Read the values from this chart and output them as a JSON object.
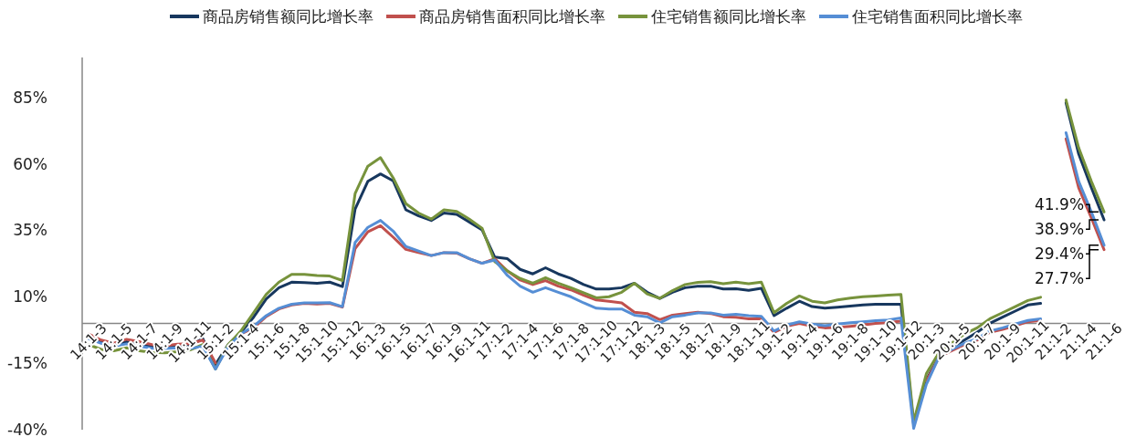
{
  "chart_data": {
    "type": "line",
    "categories": [
      "14:1-3",
      null,
      "14:1-5",
      null,
      "14:1-7",
      null,
      "14:1-9",
      null,
      "14:1-11",
      null,
      "15:1-2",
      null,
      "15:1-4",
      null,
      "15:1-6",
      null,
      "15:1-8",
      null,
      "15:1-10",
      null,
      "15:1-12",
      null,
      "16:1-3",
      null,
      "16:1-5",
      null,
      "16:1-7",
      null,
      "16:1-9",
      null,
      "16:1-11",
      null,
      "17:1-2",
      null,
      "17:1-4",
      null,
      "17:1-6",
      null,
      "17:1-8",
      null,
      "17:1-10",
      null,
      "17:1-12",
      null,
      "18:1-3",
      null,
      "18:1-5",
      null,
      "18:1-7",
      null,
      "18:1-9",
      null,
      "18:1-11",
      null,
      "19:1-2",
      null,
      "19:1-4",
      null,
      "19:1-6",
      null,
      "19:1-8",
      null,
      "19:1-10",
      null,
      "19:1-12",
      null,
      "20:1-3",
      null,
      "20:1-5",
      null,
      "20:1-7",
      null,
      "20:1-9",
      null,
      "20:1-11",
      null,
      "21:1-2",
      null,
      "21:1-4",
      null,
      "21:1-6"
    ],
    "series": [
      {
        "name": "商品房销售额同比增长率",
        "color": "#17375e",
        "values": [
          -5.2,
          -6.9,
          -8,
          -6.9,
          -8,
          -8.6,
          -9,
          -8.6,
          -8.4,
          -5.7,
          -15.5,
          -8,
          -3.4,
          2.3,
          9.2,
          13.4,
          15.5,
          15.3,
          15.1,
          15.5,
          13.8,
          43,
          53.4,
          56.2,
          53.6,
          42.7,
          40.4,
          38.7,
          41.5,
          41,
          38.1,
          35.2,
          24.9,
          24.3,
          20.3,
          18.6,
          20.9,
          18.6,
          16.9,
          14.6,
          12.9,
          12.9,
          13.4,
          15.1,
          11.7,
          9.4,
          11.7,
          13.4,
          14,
          14,
          12.9,
          13,
          12.4,
          13.2,
          2.9,
          5.7,
          8.3,
          6.3,
          5.7,
          6.1,
          6.5,
          6.9,
          7.2,
          7.2,
          7.2,
          -38,
          -21.2,
          -12.6,
          -9.2,
          -6.3,
          -3.4,
          0,
          2.3,
          4.6,
          6.9,
          7.5,
          null,
          83,
          63.7,
          51,
          38.9
        ]
      },
      {
        "name": "商品房销售面积同比增长率",
        "color": "#c0504d",
        "values": [
          -4,
          -6.3,
          -7.5,
          -6,
          -6.9,
          -8,
          -8.4,
          -7.8,
          -7.7,
          -6.3,
          -14.9,
          null,
          -4,
          -1.7,
          2.6,
          5.4,
          6.9,
          7.5,
          7.3,
          7.5,
          6.1,
          28.1,
          34.4,
          36.7,
          32.4,
          27.8,
          26.6,
          25.5,
          26.6,
          26.4,
          24.3,
          22.6,
          24.3,
          19.7,
          16.3,
          14.6,
          16.1,
          14,
          12.6,
          10.6,
          8.8,
          8.3,
          7.7,
          4.2,
          3.7,
          1.4,
          3.1,
          3.7,
          4.2,
          3.7,
          2.5,
          2.3,
          1.7,
          1.7,
          -3.4,
          -1.1,
          0,
          -1.1,
          -1.7,
          -1.5,
          -1.1,
          -0.6,
          0,
          0.3,
          0.8,
          null,
          -21.8,
          -12.6,
          -10.3,
          -8,
          -6.3,
          -3.4,
          -2.3,
          -0.9,
          0.6,
          1.1,
          null,
          69.4,
          51,
          39.6,
          27.7
        ]
      },
      {
        "name": "住宅销售额同比增长率",
        "color": "#77933c",
        "values": [
          -8,
          -9.8,
          -10.3,
          -9.2,
          -10.3,
          -10.9,
          -11.1,
          -10.7,
          -10,
          -8,
          -17.2,
          -8,
          -2.9,
          4,
          10.9,
          15.5,
          18.4,
          18.4,
          18,
          17.8,
          16.1,
          48.8,
          59.1,
          62.3,
          54.7,
          45,
          41.5,
          39.2,
          42.7,
          42.1,
          39.2,
          35.8,
          23.2,
          19.7,
          16.9,
          15.1,
          17.2,
          15.1,
          13.4,
          11.5,
          9.6,
          10,
          11.7,
          15.1,
          11.1,
          9.4,
          12.3,
          14.6,
          15.4,
          15.7,
          14.9,
          15.5,
          14.9,
          15.5,
          4,
          7.5,
          10.3,
          8.3,
          7.7,
          8.8,
          9.5,
          10,
          10.3,
          10.6,
          10.9,
          -37,
          -18.9,
          -10.9,
          -7.5,
          -4,
          -1.7,
          1.7,
          4,
          6.3,
          8.6,
          9.8,
          null,
          84,
          66,
          53.4,
          41.9
        ]
      },
      {
        "name": "住宅销售面积同比增长率",
        "color": "#558ed5",
        "values": [
          -5.7,
          -7.5,
          -8.6,
          -7.7,
          -8.6,
          -9.4,
          -9.5,
          -9.2,
          -9.5,
          -8.6,
          -17.2,
          -8.8,
          -4,
          -1.1,
          2.9,
          5.7,
          7.2,
          7.7,
          7.7,
          7.8,
          6.3,
          30.4,
          36.1,
          38.7,
          34.7,
          28.9,
          27.2,
          25.5,
          26.6,
          26.6,
          24.3,
          22.6,
          23.8,
          18,
          14,
          11.7,
          13.4,
          11.7,
          10,
          7.7,
          5.7,
          5.4,
          5.4,
          3.1,
          2.5,
          0.2,
          2.5,
          3.1,
          3.9,
          3.9,
          3.1,
          3.4,
          2.9,
          2.6,
          -2.9,
          -0.6,
          0.6,
          -0.3,
          -0.9,
          -0.3,
          0.2,
          0.6,
          1,
          1.3,
          2,
          -39.5,
          -23,
          -12.6,
          -9.8,
          -7.5,
          -5.7,
          -2.9,
          -1.7,
          -0.3,
          1.1,
          1.7,
          null,
          71.7,
          53.4,
          41.9,
          29.4
        ]
      }
    ],
    "ylim": [
      -40,
      100
    ],
    "yticks": [
      {
        "value": -40,
        "label": "-40%"
      },
      {
        "value": -15,
        "label": "-15%"
      },
      {
        "value": 10,
        "label": "10%"
      },
      {
        "value": 35,
        "label": "35%"
      },
      {
        "value": 60,
        "label": "60%"
      },
      {
        "value": 85,
        "label": "85%"
      }
    ],
    "annotations": [
      {
        "text": "41.9%",
        "x": "21:1-6",
        "y": 41.9
      },
      {
        "text": "38.9%",
        "x": "21:1-6",
        "y": 38.9
      },
      {
        "text": "29.4%",
        "x": "21:1-6",
        "y": 29.4
      },
      {
        "text": "27.7%",
        "x": "21:1-6",
        "y": 27.7
      }
    ],
    "legend": "top",
    "grid": false,
    "marker": "none",
    "line_style": "solid"
  }
}
